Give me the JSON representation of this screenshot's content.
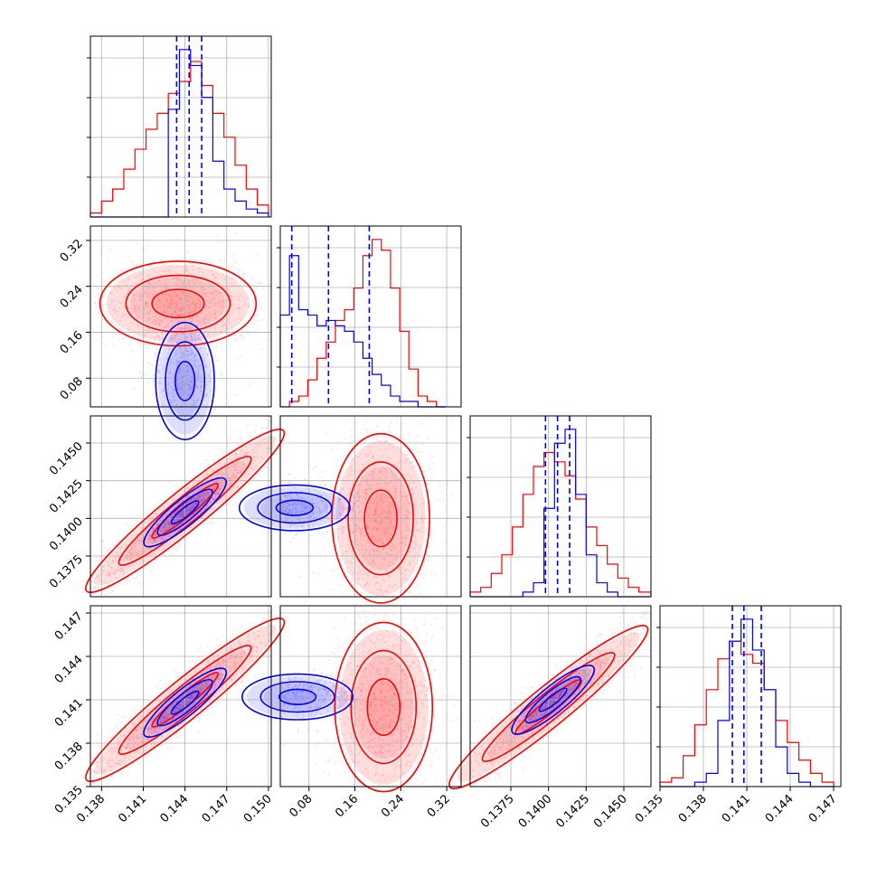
{
  "chart_data": {
    "type": "corner",
    "grid": true,
    "series": [
      {
        "name": "",
        "color": "#ff0000"
      },
      {
        "name": "",
        "color": "#0000ff"
      }
    ],
    "params": [
      {
        "range": [
          0.1372,
          0.1502
        ],
        "ticks": [
          0.138,
          0.141,
          0.144,
          0.147,
          0.15
        ],
        "tick_labels": [
          "0.138",
          "0.141",
          "0.144",
          "0.147",
          "0.150"
        ]
      },
      {
        "range": [
          0.03,
          0.345
        ],
        "ticks": [
          0.08,
          0.16,
          0.24,
          0.32
        ],
        "tick_labels": [
          "0.08",
          "0.16",
          "0.24",
          "0.32"
        ]
      },
      {
        "range": [
          0.1348,
          0.1468
        ],
        "ticks": [
          0.1375,
          0.14,
          0.1425,
          0.145
        ],
        "tick_labels": [
          "0.1375",
          "0.1400",
          "0.1425",
          "0.1450"
        ]
      },
      {
        "range": [
          0.135,
          0.1475
        ],
        "ticks": [
          0.135,
          0.138,
          0.141,
          0.144,
          0.147
        ],
        "tick_labels": [
          "0.135",
          "0.138",
          "0.141",
          "0.144",
          "0.147"
        ]
      }
    ],
    "histograms": [
      {
        "param": 0,
        "quantiles_blue": [
          0.1434,
          0.1443,
          0.1452
        ],
        "bins": [
          0.1372,
          0.138,
          0.1388,
          0.1396,
          0.1404,
          0.1412,
          0.142,
          0.1428,
          0.1436,
          0.1444,
          0.1452,
          0.146,
          0.1468,
          0.1476,
          0.1484,
          0.1492,
          0.15
        ],
        "red": [
          1,
          4,
          7,
          12,
          17,
          22,
          26,
          31,
          34,
          39,
          33,
          26,
          20,
          13,
          7,
          3
        ],
        "blue": [
          0,
          0,
          0,
          0,
          0,
          0,
          0,
          27,
          42,
          38,
          30,
          14,
          7,
          4,
          2,
          1
        ]
      },
      {
        "param": 1,
        "quantiles_blue": [
          0.05,
          0.114,
          0.185
        ],
        "bins": [
          0.03,
          0.046,
          0.062,
          0.078,
          0.094,
          0.11,
          0.126,
          0.142,
          0.158,
          0.174,
          0.19,
          0.206,
          0.222,
          0.238,
          0.254,
          0.27,
          0.286,
          0.302,
          0.318
        ],
        "red": [
          0,
          1,
          2,
          5,
          9,
          12,
          16,
          18,
          22,
          28,
          31,
          29,
          22,
          14,
          7,
          2,
          1,
          0
        ],
        "blue": [
          17,
          28,
          18,
          17,
          15,
          16,
          15,
          14,
          12,
          9,
          6,
          4,
          2,
          1,
          1,
          0,
          0,
          0
        ]
      },
      {
        "param": 2,
        "quantiles_blue": [
          0.1398,
          0.1406,
          0.1414
        ],
        "bins": [
          0.1348,
          0.1355,
          0.1362,
          0.1369,
          0.1376,
          0.1383,
          0.139,
          0.1397,
          0.1404,
          0.1411,
          0.1418,
          0.1425,
          0.1432,
          0.1439,
          0.1446,
          0.1453,
          0.146,
          0.1468
        ],
        "red": [
          1,
          2,
          5,
          9,
          15,
          22,
          28,
          31,
          29,
          26,
          21,
          15,
          11,
          7,
          4,
          2,
          1
        ],
        "blue": [
          0,
          0,
          0,
          0,
          0,
          1,
          3,
          19,
          33,
          36,
          22,
          9,
          3,
          1,
          0,
          0,
          0
        ]
      },
      {
        "param": 3,
        "quantiles_blue": [
          0.14,
          0.1408,
          0.142
        ],
        "bins": [
          0.135,
          0.1358,
          0.1366,
          0.1374,
          0.1382,
          0.139,
          0.1398,
          0.1406,
          0.1414,
          0.1422,
          0.143,
          0.1438,
          0.1446,
          0.1454,
          0.1462,
          0.147
        ],
        "red": [
          1,
          2,
          7,
          14,
          22,
          29,
          33,
          30,
          28,
          22,
          15,
          10,
          6,
          3,
          1
        ],
        "blue": [
          0,
          0,
          0,
          1,
          3,
          15,
          33,
          38,
          31,
          22,
          9,
          3,
          1,
          0,
          0
        ]
      }
    ],
    "scatter_2d": [
      {
        "px": 0,
        "py": 1,
        "red": {
          "peak": [
            0.1435,
            0.21
          ]
        },
        "blue": {
          "peak": [
            0.144,
            0.075
          ]
        }
      },
      {
        "px": 0,
        "py": 2,
        "red": {
          "peak": [
            0.144,
            0.1405
          ]
        },
        "blue": {
          "peak": [
            0.144,
            0.1404
          ]
        }
      },
      {
        "px": 1,
        "py": 2,
        "red": {
          "peak": [
            0.205,
            0.14
          ]
        },
        "blue": {
          "peak": [
            0.055,
            0.1407
          ]
        }
      },
      {
        "px": 0,
        "py": 3,
        "red": {
          "peak": [
            0.144,
            0.141
          ]
        },
        "blue": {
          "peak": [
            0.144,
            0.1408
          ]
        }
      },
      {
        "px": 1,
        "py": 3,
        "red": {
          "peak": [
            0.21,
            0.1405
          ]
        },
        "blue": {
          "peak": [
            0.06,
            0.1412
          ]
        }
      },
      {
        "px": 2,
        "py": 3,
        "red": {
          "peak": [
            0.14,
            0.1405
          ]
        },
        "blue": {
          "peak": [
            0.1403,
            0.141
          ]
        }
      }
    ]
  }
}
